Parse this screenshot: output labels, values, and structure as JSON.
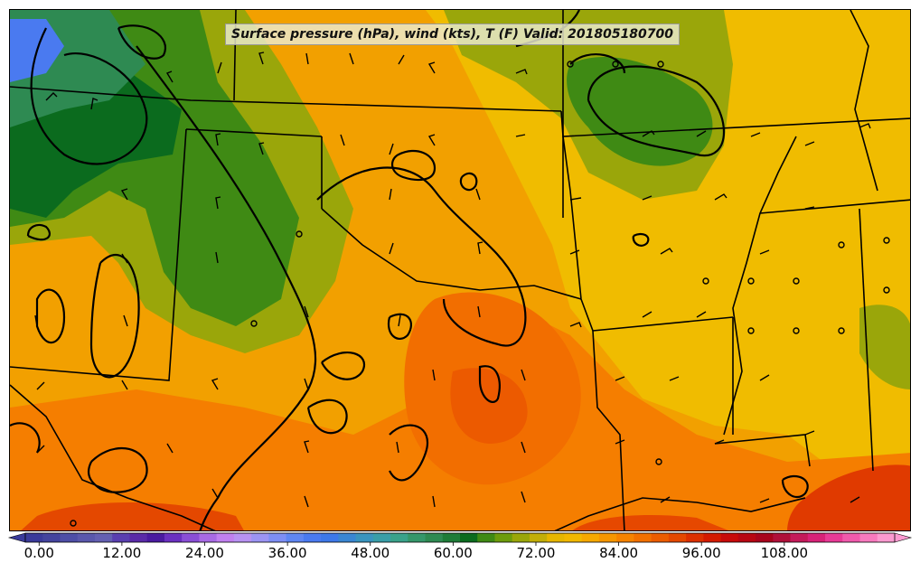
{
  "title": "Surface pressure (hPa), wind (kts), T (F) Valid: 201805180700",
  "colorbar": {
    "ticks": [
      "0.00",
      "12.00",
      "24.00",
      "36.00",
      "48.00",
      "60.00",
      "72.00",
      "84.00",
      "96.00",
      "108.00"
    ],
    "tick_values": [
      0,
      12,
      24,
      36,
      48,
      60,
      72,
      84,
      96,
      108
    ],
    "range": [
      -2,
      124
    ],
    "step": 3,
    "extend": "both",
    "colors": [
      "#3a3a9a",
      "#44449e",
      "#4e4ea6",
      "#5a58ac",
      "#6460b2",
      "#5a3fb0",
      "#5a2aa8",
      "#4a1aa0",
      "#6a30c0",
      "#8a4ed6",
      "#a86ae4",
      "#c080ef",
      "#b892f2",
      "#9c94f4",
      "#7d8ef4",
      "#5f86f2",
      "#4a7af0",
      "#3d78e8",
      "#3a86d2",
      "#3a94be",
      "#3a9ea8",
      "#3aa28a",
      "#35976a",
      "#2e8a52",
      "#1e7c38",
      "#0b6b1e",
      "#3f8a14",
      "#6d9c0c",
      "#9aa60a",
      "#c2ae08",
      "#e6b600",
      "#f2b800",
      "#f6a800",
      "#f69600",
      "#f68300",
      "#f27000",
      "#ec5c00",
      "#e44800",
      "#dc3000",
      "#d41a00",
      "#c80a0a",
      "#b80612",
      "#a8041c",
      "#b0103a",
      "#c41a5a",
      "#d82278",
      "#e83a96",
      "#f05aac",
      "#f87abe",
      "#fc9ad0"
    ]
  }
}
